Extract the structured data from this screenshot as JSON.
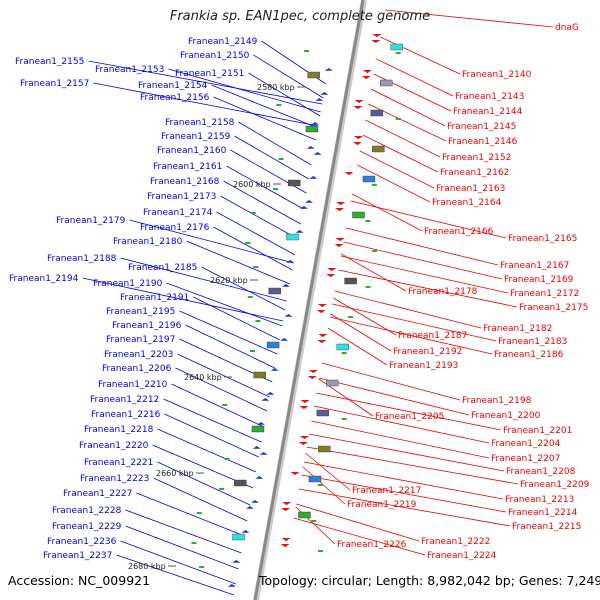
{
  "title": "Frankia sp. EAN1pec, complete genome",
  "footer": {
    "accession": "Accession: NC_009921",
    "summary": "Topology: circular; Length: 8,982,042 bp; Genes: 7,249"
  },
  "colors": {
    "left_labels": "#0000ee",
    "right_labels": "#ee0000",
    "backbone": "#888888"
  },
  "kbp_marks": [
    "2580 kbp",
    "2600 kbp",
    "2620 kbp",
    "2640 kbp",
    "2660 kbp",
    "2680 kbp"
  ],
  "left_labels": [
    "Franean1_2149",
    "Franean1_2150",
    "Franean1_2155",
    "Franean1_2153",
    "Franean1_2151",
    "Franean1_2157",
    "Franean1_2154",
    "Franean1_2156",
    "Franean1_2158",
    "Franean1_2159",
    "Franean1_2160",
    "Franean1_2161",
    "Franean1_2168",
    "Franean1_2173",
    "Franean1_2174",
    "Franean1_2179",
    "Franean1_2176",
    "Franean1_2180",
    "Franean1_2188",
    "Franean1_2185",
    "Franean1_2194",
    "Franean1_2190",
    "Franean1_2191",
    "Franean1_2195",
    "Franean1_2196",
    "Franean1_2197",
    "Franean1_2203",
    "Franean1_2206",
    "Franean1_2210",
    "Franean1_2212",
    "Franean1_2216",
    "Franean1_2218",
    "Franean1_2220",
    "Franean1_2221",
    "Franean1_2223",
    "Franean1_2227",
    "Franean1_2228",
    "Franean1_2229",
    "Franean1_2236",
    "Franean1_2237"
  ],
  "right_labels": [
    "dnaG",
    "Franean1_2140",
    "Franean1_2143",
    "Franean1_2144",
    "Franean1_2145",
    "Franean1_2146",
    "Franean1_2152",
    "Franean1_2162",
    "Franean1_2163",
    "Franean1_2164",
    "Franean1_2166",
    "Franean1_2165",
    "Franean1_2167",
    "Franean1_2169",
    "Franean1_2178",
    "Franean1_2172",
    "Franean1_2175",
    "Franean1_2182",
    "Franean1_2187",
    "Franean1_2183",
    "Franean1_2192",
    "Franean1_2186",
    "Franean1_2193",
    "Franean1_2198",
    "Franean1_2200",
    "Franean1_2205",
    "Franean1_2201",
    "Franean1_2204",
    "Franean1_2207",
    "Franean1_2208",
    "Franean1_2209",
    "Franean1_2217",
    "Franean1_2213",
    "Franean1_2219",
    "Franean1_2214",
    "Franean1_2215",
    "Franean1_2222",
    "Franean1_2226",
    "Franean1_2224"
  ]
}
